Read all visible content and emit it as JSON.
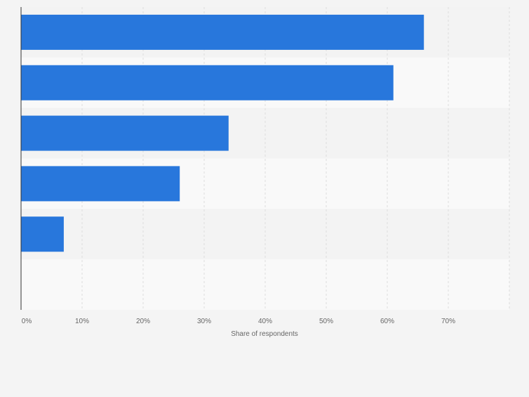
{
  "colors": {
    "page_background": "#f4f4f4",
    "band_light": "#f9f9f9",
    "band_dark": "#f3f3f3",
    "bar": "#2877dc",
    "grid": "#dddddd",
    "axis": "#333333",
    "tick_text": "#666666"
  },
  "chart_data": {
    "type": "bar",
    "orientation": "horizontal",
    "categories": [
      "",
      "",
      "",
      "",
      "",
      ""
    ],
    "values": [
      66,
      61,
      34,
      26,
      7,
      null
    ],
    "xlabel": "Share of respondents",
    "ylabel": "",
    "xlim": [
      0,
      80
    ],
    "x_ticks": [
      0,
      10,
      20,
      30,
      40,
      50,
      60,
      70
    ],
    "x_tick_labels": [
      "0%",
      "10%",
      "20%",
      "30%",
      "40%",
      "50%",
      "60%",
      "70%"
    ],
    "grid": true,
    "legend": "none"
  }
}
